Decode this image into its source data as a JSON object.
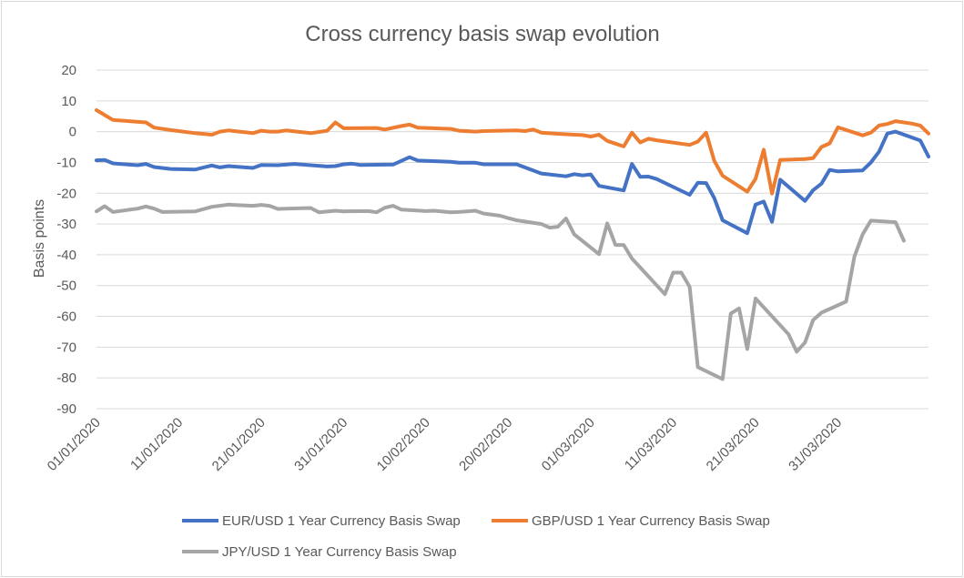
{
  "chart_data": {
    "type": "line",
    "title": "Cross currency basis swap evolution",
    "xlabel": "",
    "ylabel": "Basis points",
    "ylim": [
      -90,
      20
    ],
    "ytick_step": 10,
    "grid": true,
    "legend_position": "bottom",
    "x_tick_labels": [
      "01/01/2020",
      "11/01/2020",
      "21/01/2020",
      "31/01/2020",
      "10/02/2020",
      "20/02/2020",
      "01/03/2020",
      "11/03/2020",
      "21/03/2020",
      "31/03/2020"
    ],
    "x_range_days": [
      0,
      96
    ],
    "x_tick_days": [
      0,
      10,
      20,
      30,
      40,
      50,
      60,
      70,
      80,
      90
    ],
    "series": [
      {
        "name": "EUR/USD 1 Year Currency Basis Swap",
        "color": "#4472c4",
        "points": [
          [
            0,
            -9.3
          ],
          [
            1,
            -9.2
          ],
          [
            2,
            -10.3
          ],
          [
            5,
            -10.9
          ],
          [
            6,
            -10.5
          ],
          [
            7,
            -11.5
          ],
          [
            9,
            -12.1
          ],
          [
            12,
            -12.3
          ],
          [
            14,
            -11
          ],
          [
            15,
            -11.6
          ],
          [
            16,
            -11.2
          ],
          [
            19,
            -11.8
          ],
          [
            20,
            -10.8
          ],
          [
            22,
            -10.9
          ],
          [
            24,
            -10.5
          ],
          [
            28,
            -11.3
          ],
          [
            29,
            -11.2
          ],
          [
            30,
            -10.6
          ],
          [
            31,
            -10.4
          ],
          [
            32,
            -10.8
          ],
          [
            36,
            -10.7
          ],
          [
            38,
            -8.3
          ],
          [
            39,
            -9.4
          ],
          [
            43,
            -9.8
          ],
          [
            44,
            -10.1
          ],
          [
            46,
            -10.1
          ],
          [
            47,
            -10.6
          ],
          [
            51,
            -10.6
          ],
          [
            54,
            -13.6
          ],
          [
            57,
            -14.5
          ],
          [
            58,
            -13.8
          ],
          [
            59,
            -14.2
          ],
          [
            60,
            -13.9
          ],
          [
            61,
            -17.6
          ],
          [
            64,
            -19.1
          ],
          [
            65,
            -10.5
          ],
          [
            66,
            -14.7
          ],
          [
            67,
            -14.6
          ],
          [
            68,
            -15.4
          ],
          [
            72,
            -20.5
          ],
          [
            73,
            -16.6
          ],
          [
            74,
            -16.7
          ],
          [
            75,
            -21.6
          ],
          [
            76,
            -28.8
          ],
          [
            79,
            -33
          ],
          [
            80,
            -23.7
          ],
          [
            81,
            -22.7
          ],
          [
            82,
            -29.3
          ],
          [
            83,
            -15.6
          ],
          [
            86,
            -22.5
          ],
          [
            87,
            -19
          ],
          [
            88,
            -16.9
          ],
          [
            89,
            -12.4
          ],
          [
            90,
            -12.9
          ],
          [
            93,
            -12.6
          ],
          [
            94,
            -10
          ],
          [
            95,
            -6.5
          ],
          [
            96,
            -0.6
          ],
          [
            97,
            0
          ],
          [
            100,
            -2.9
          ],
          [
            101,
            -8.1
          ]
        ]
      },
      {
        "name": "GBP/USD 1 Year Currency Basis Swap",
        "color": "#ed7d31",
        "points": [
          [
            0,
            7
          ],
          [
            1,
            5.4
          ],
          [
            2,
            3.8
          ],
          [
            6,
            3
          ],
          [
            7,
            1.3
          ],
          [
            9,
            0.5
          ],
          [
            10,
            0.2
          ],
          [
            12,
            -0.5
          ],
          [
            14,
            -1
          ],
          [
            15,
            0
          ],
          [
            16,
            0.4
          ],
          [
            19,
            -0.5
          ],
          [
            20,
            0.3
          ],
          [
            21,
            0
          ],
          [
            22,
            0
          ],
          [
            23,
            0.4
          ],
          [
            26,
            -0.5
          ],
          [
            28,
            0.3
          ],
          [
            29,
            3
          ],
          [
            30,
            1.1
          ],
          [
            34,
            1.2
          ],
          [
            35,
            0.7
          ],
          [
            37,
            1.8
          ],
          [
            38,
            2.3
          ],
          [
            39,
            1.3
          ],
          [
            43,
            0.9
          ],
          [
            44,
            0.3
          ],
          [
            46,
            0
          ],
          [
            47,
            0.2
          ],
          [
            51,
            0.4
          ],
          [
            52,
            0.2
          ],
          [
            53,
            0.7
          ],
          [
            54,
            -0.3
          ],
          [
            56,
            -0.7
          ],
          [
            59,
            -1.1
          ],
          [
            60,
            -1.6
          ],
          [
            61,
            -1
          ],
          [
            62,
            -3
          ],
          [
            63,
            -3.9
          ],
          [
            64,
            -4.8
          ],
          [
            65,
            -0.3
          ],
          [
            66,
            -3.5
          ],
          [
            67,
            -2.3
          ],
          [
            68,
            -2.8
          ],
          [
            72,
            -4.3
          ],
          [
            73,
            -3.2
          ],
          [
            74,
            -0.3
          ],
          [
            75,
            -9.5
          ],
          [
            76,
            -14.3
          ],
          [
            79,
            -19.5
          ],
          [
            80,
            -15.3
          ],
          [
            81,
            -5.9
          ],
          [
            82,
            -20.1
          ],
          [
            83,
            -9.2
          ],
          [
            86,
            -8.9
          ],
          [
            87,
            -8.6
          ],
          [
            88,
            -5
          ],
          [
            89,
            -3.8
          ],
          [
            90,
            1.4
          ],
          [
            93,
            -1.2
          ],
          [
            94,
            -0.3
          ],
          [
            95,
            2
          ],
          [
            96,
            2.5
          ],
          [
            97,
            3.4
          ],
          [
            99,
            2.6
          ],
          [
            100,
            2
          ],
          [
            101,
            -0.6
          ]
        ]
      },
      {
        "name": "JPY/USD 1 Year Currency Basis Swap",
        "color": "#a5a5a5",
        "points": [
          [
            0,
            -25.9
          ],
          [
            1,
            -24.2
          ],
          [
            2,
            -26.1
          ],
          [
            5,
            -25
          ],
          [
            6,
            -24.3
          ],
          [
            7,
            -25
          ],
          [
            8,
            -26.1
          ],
          [
            12,
            -25.9
          ],
          [
            14,
            -24.4
          ],
          [
            16,
            -23.7
          ],
          [
            19,
            -24.1
          ],
          [
            20,
            -23.8
          ],
          [
            21,
            -24.1
          ],
          [
            22,
            -25.1
          ],
          [
            26,
            -24.8
          ],
          [
            27,
            -26.2
          ],
          [
            29,
            -25.7
          ],
          [
            30,
            -25.9
          ],
          [
            33,
            -25.8
          ],
          [
            34,
            -26.2
          ],
          [
            35,
            -24.7
          ],
          [
            36,
            -24.1
          ],
          [
            37,
            -25.3
          ],
          [
            40,
            -25.8
          ],
          [
            41,
            -25.7
          ],
          [
            43,
            -26.2
          ],
          [
            44,
            -26.1
          ],
          [
            46,
            -25.7
          ],
          [
            47,
            -26.6
          ],
          [
            49,
            -27.3
          ],
          [
            50,
            -28.1
          ],
          [
            51,
            -28.8
          ],
          [
            54,
            -30
          ],
          [
            55,
            -31.2
          ],
          [
            56,
            -30.9
          ],
          [
            57,
            -28.2
          ],
          [
            58,
            -33.4
          ],
          [
            61,
            -39.8
          ],
          [
            62,
            -29.8
          ],
          [
            63,
            -36.8
          ],
          [
            64,
            -36.8
          ],
          [
            65,
            -41.2
          ],
          [
            69,
            -52.8
          ],
          [
            70,
            -45.8
          ],
          [
            71,
            -45.8
          ],
          [
            72,
            -50.4
          ],
          [
            73,
            -76.5
          ],
          [
            76,
            -80.4
          ],
          [
            77,
            -59.1
          ],
          [
            78,
            -57.4
          ],
          [
            79,
            -70.6
          ],
          [
            80,
            -54.2
          ],
          [
            84,
            -65.8
          ],
          [
            85,
            -71.5
          ],
          [
            86,
            -68.5
          ],
          [
            87,
            -61.2
          ],
          [
            88,
            -58.8
          ],
          [
            91,
            -55.2
          ],
          [
            92,
            -40.6
          ],
          [
            93,
            -33.4
          ],
          [
            94,
            -28.9
          ],
          [
            97,
            -29.4
          ],
          [
            98,
            -35.4
          ]
        ]
      }
    ]
  }
}
